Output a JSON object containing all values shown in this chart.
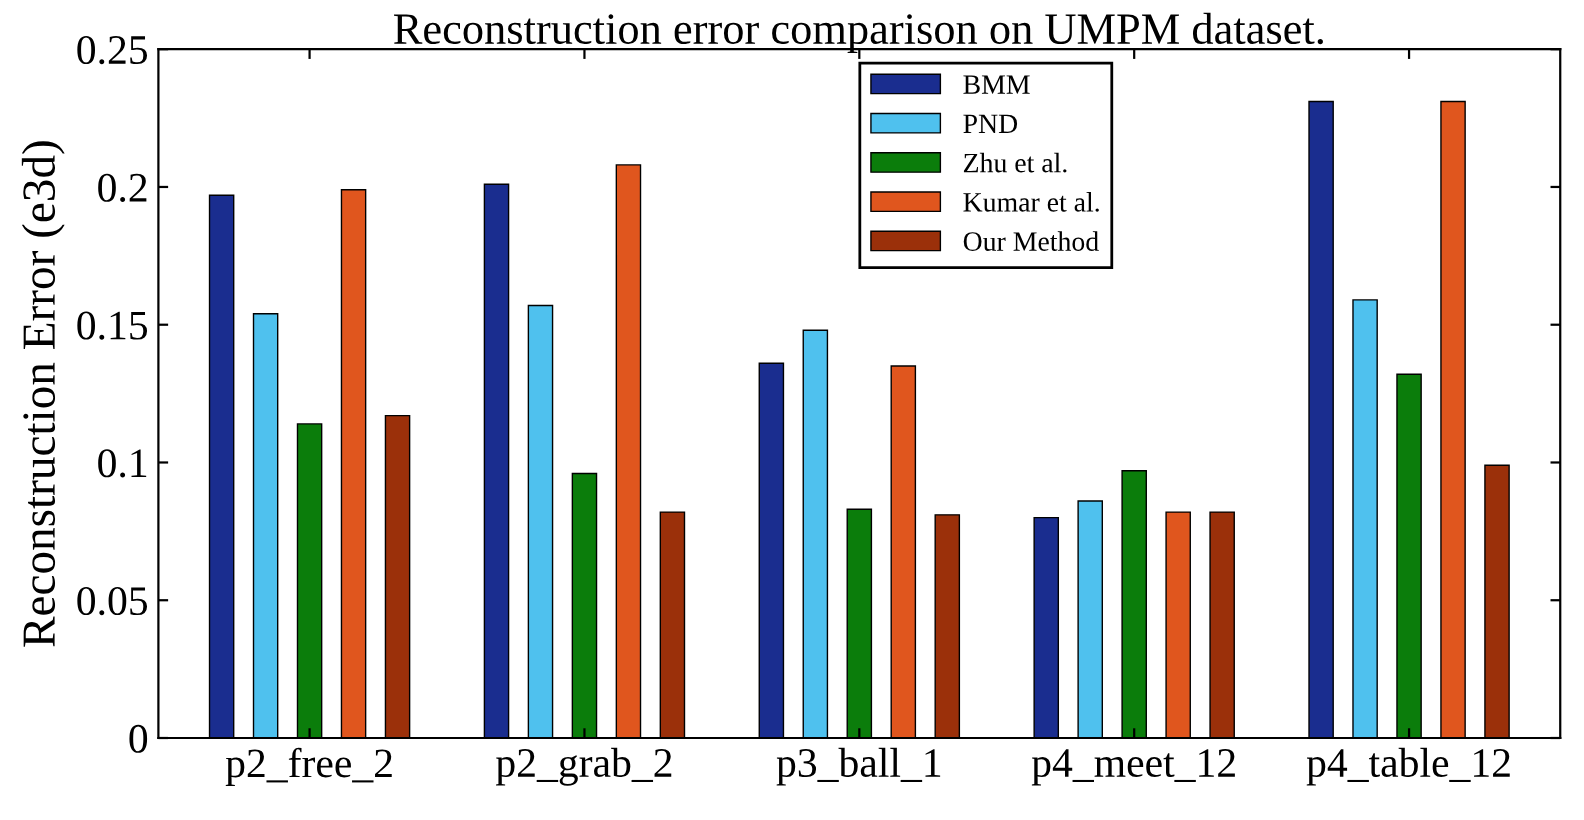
{
  "chart_data": {
    "type": "bar",
    "title": "Reconstruction error comparison on UMPM dataset.",
    "ylabel": "Reconstruction Error (e3d)",
    "categories": [
      "p2_free_2",
      "p2_grab_2",
      "p3_ball_1",
      "p4_meet_12",
      "p4_table_12"
    ],
    "series": [
      {
        "name": "BMM",
        "color": "#1a2d8f",
        "values": [
          0.197,
          0.201,
          0.136,
          0.08,
          0.231
        ]
      },
      {
        "name": "PND",
        "color": "#4fc1ee",
        "values": [
          0.154,
          0.157,
          0.148,
          0.086,
          0.159
        ]
      },
      {
        "name": "Zhu et al.",
        "color": "#0b7d0b",
        "values": [
          0.114,
          0.096,
          0.083,
          0.097,
          0.132
        ]
      },
      {
        "name": "Kumar et al.",
        "color": "#e0561e",
        "values": [
          0.199,
          0.208,
          0.135,
          0.082,
          0.231
        ]
      },
      {
        "name": "Our Method",
        "color": "#9b300a",
        "values": [
          0.117,
          0.082,
          0.081,
          0.082,
          0.099
        ]
      }
    ],
    "ylim": [
      0,
      0.25
    ],
    "yticks": [
      0,
      0.05,
      0.1,
      0.15,
      0.2,
      0.25
    ],
    "grid": false,
    "legend": "top right"
  }
}
